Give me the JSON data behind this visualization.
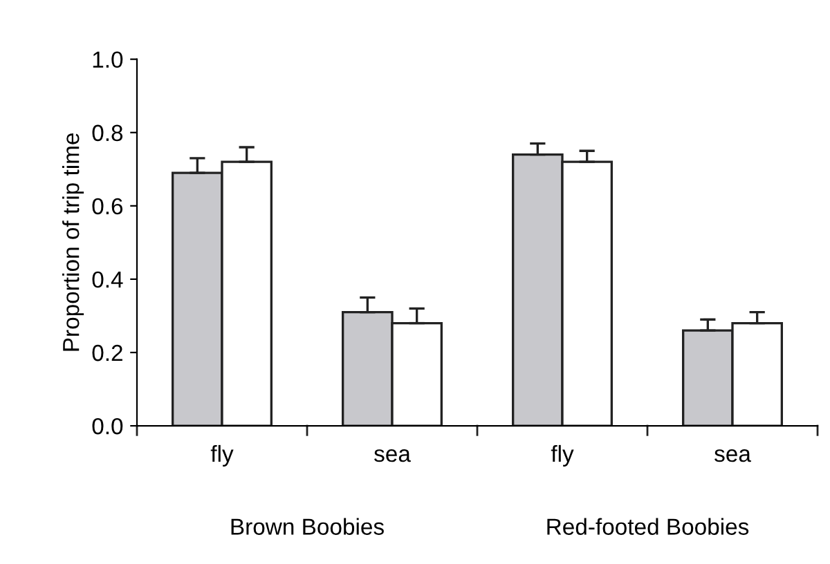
{
  "chart_data": {
    "type": "bar",
    "ylabel": "Proportion of trip time",
    "categories": [
      "fly",
      "sea",
      "fly",
      "sea"
    ],
    "series": [
      {
        "color": "#c8c8cc",
        "values": [
          0.69,
          0.31,
          0.74,
          0.26
        ],
        "errors": [
          [
            0.69,
            0.73
          ],
          [
            0.31,
            0.35
          ],
          [
            0.74,
            0.77
          ],
          [
            0.26,
            0.29
          ]
        ]
      },
      {
        "color": "#ffffff",
        "values": [
          0.72,
          0.28,
          0.72,
          0.28
        ],
        "errors": [
          [
            0.72,
            0.76
          ],
          [
            0.28,
            0.32
          ],
          [
            0.72,
            0.75
          ],
          [
            0.28,
            0.31
          ]
        ]
      }
    ],
    "annotations": [
      "Brown Boobies",
      "Red-footed Boobies"
    ],
    "ylim": [
      0,
      1.0
    ],
    "yticks": [
      {
        "value": 0,
        "label": "0.0"
      },
      0.2,
      0.4,
      0.6,
      0.8,
      {
        "value": 1.0,
        "label": "1.0"
      }
    ],
    "grid": false,
    "legend": false
  }
}
